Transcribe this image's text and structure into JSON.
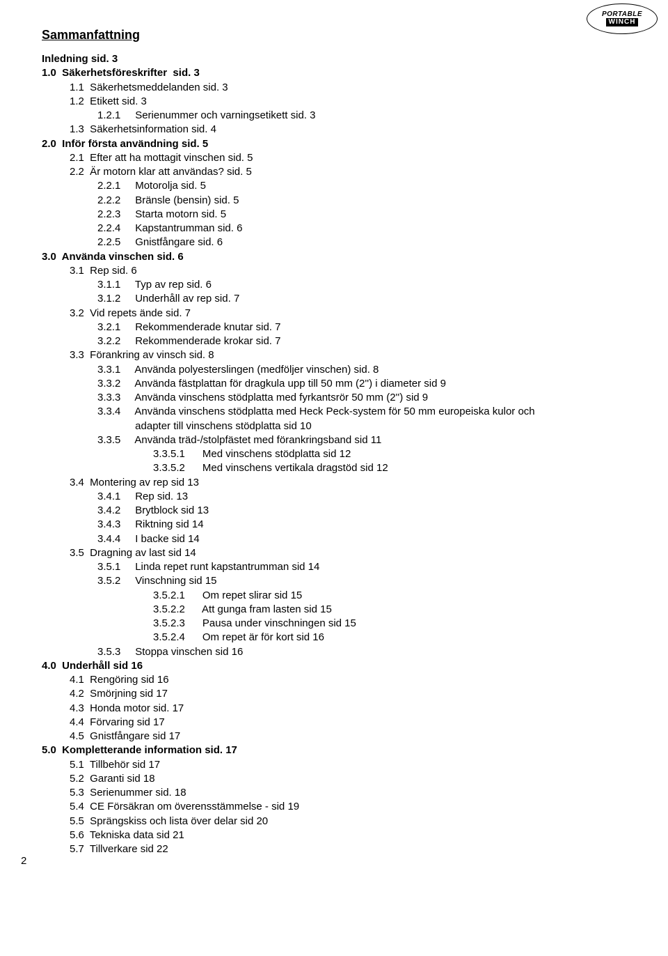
{
  "logo": {
    "line1": "PORTABLE",
    "line2": "WINCH"
  },
  "title": "Sammanfattning",
  "page_number": "2",
  "lines": [
    {
      "lvl": "l0",
      "bold": true,
      "text": "Inledning sid. 3"
    },
    {
      "lvl": "l0",
      "bold": true,
      "text": "1.0  Säkerhetsföreskrifter  sid. 3"
    },
    {
      "lvl": "l1",
      "bold": false,
      "text": "1.1  Säkerhetsmeddelanden sid. 3"
    },
    {
      "lvl": "l1",
      "bold": false,
      "text": "1.2  Etikett sid. 3"
    },
    {
      "lvl": "l2",
      "bold": false,
      "text": "1.2.1     Serienummer och varningsetikett sid. 3"
    },
    {
      "lvl": "l1",
      "bold": false,
      "text": "1.3  Säkerhetsinformation sid. 4"
    },
    {
      "lvl": "l0",
      "bold": true,
      "text": "2.0  Inför första användning sid. 5"
    },
    {
      "lvl": "l1",
      "bold": false,
      "text": "2.1  Efter att ha mottagit vinschen sid. 5"
    },
    {
      "lvl": "l1",
      "bold": false,
      "text": "2.2  Är motorn klar att användas? sid. 5"
    },
    {
      "lvl": "l2",
      "bold": false,
      "text": "2.2.1     Motorolja sid. 5"
    },
    {
      "lvl": "l2",
      "bold": false,
      "text": "2.2.2     Bränsle (bensin) sid. 5"
    },
    {
      "lvl": "l2",
      "bold": false,
      "text": "2.2.3     Starta motorn sid. 5"
    },
    {
      "lvl": "l2",
      "bold": false,
      "text": "2.2.4     Kapstantrumman sid. 6"
    },
    {
      "lvl": "l2",
      "bold": false,
      "text": "2.2.5     Gnistfångare sid. 6"
    },
    {
      "lvl": "l0",
      "bold": true,
      "text": "3.0  Använda vinschen sid. 6"
    },
    {
      "lvl": "l1",
      "bold": false,
      "text": "3.1  Rep sid. 6"
    },
    {
      "lvl": "l2",
      "bold": false,
      "text": "3.1.1     Typ av rep sid. 6"
    },
    {
      "lvl": "l2",
      "bold": false,
      "text": "3.1.2     Underhåll av rep sid. 7"
    },
    {
      "lvl": "l1",
      "bold": false,
      "text": "3.2  Vid repets ände sid. 7"
    },
    {
      "lvl": "l2",
      "bold": false,
      "text": "3.2.1     Rekommenderade knutar sid. 7"
    },
    {
      "lvl": "l2",
      "bold": false,
      "text": "3.2.2     Rekommenderade krokar sid. 7"
    },
    {
      "lvl": "l1",
      "bold": false,
      "text": "3.3  Förankring av vinsch sid. 8"
    },
    {
      "lvl": "l2",
      "bold": false,
      "text": "3.3.1     Använda polyesterslingen (medföljer vinschen) sid. 8"
    },
    {
      "lvl": "l2",
      "bold": false,
      "text": "3.3.2     Använda fästplattan för dragkula upp till 50 mm (2'') i diameter sid 9"
    },
    {
      "lvl": "l2",
      "bold": false,
      "text": "3.3.3     Använda vinschens stödplatta med fyrkantsrör 50 mm (2'') sid 9"
    },
    {
      "lvl": "l2",
      "bold": false,
      "text": "3.3.4     Använda vinschens stödplatta med Heck Peck-system för 50 mm europeiska kulor och"
    },
    {
      "lvl": "l2",
      "bold": false,
      "text": "             adapter till vinschens stödplatta sid 10"
    },
    {
      "lvl": "l2",
      "bold": false,
      "text": "3.3.5     Använda träd-/stolpfästet med förankringsband sid 11"
    },
    {
      "lvl": "l3",
      "bold": false,
      "text": "3.3.5.1      Med vinschens stödplatta sid 12"
    },
    {
      "lvl": "l3",
      "bold": false,
      "text": "3.3.5.2      Med vinschens vertikala dragstöd sid 12"
    },
    {
      "lvl": "l1",
      "bold": false,
      "text": "3.4  Montering av rep sid 13"
    },
    {
      "lvl": "l2",
      "bold": false,
      "text": "3.4.1     Rep sid. 13"
    },
    {
      "lvl": "l2",
      "bold": false,
      "text": "3.4.2     Brytblock sid 13"
    },
    {
      "lvl": "l2",
      "bold": false,
      "text": "3.4.3     Riktning sid 14"
    },
    {
      "lvl": "l2",
      "bold": false,
      "text": "3.4.4     I backe sid 14"
    },
    {
      "lvl": "l1",
      "bold": false,
      "text": "3.5  Dragning av last sid 14"
    },
    {
      "lvl": "l2",
      "bold": false,
      "text": "3.5.1     Linda repet runt kapstantrumman sid 14"
    },
    {
      "lvl": "l2",
      "bold": false,
      "text": "3.5.2     Vinschning sid 15"
    },
    {
      "lvl": "l3",
      "bold": false,
      "text": "3.5.2.1      Om repet slirar sid 15"
    },
    {
      "lvl": "l3",
      "bold": false,
      "text": "3.5.2.2      Att gunga fram lasten sid 15"
    },
    {
      "lvl": "l3",
      "bold": false,
      "text": "3.5.2.3      Pausa under vinschningen sid 15"
    },
    {
      "lvl": "l3",
      "bold": false,
      "text": "3.5.2.4      Om repet är för kort sid 16"
    },
    {
      "lvl": "l2",
      "bold": false,
      "text": "3.5.3     Stoppa vinschen sid 16"
    },
    {
      "lvl": "l0",
      "bold": true,
      "text": "4.0  Underhåll sid 16"
    },
    {
      "lvl": "l1",
      "bold": false,
      "text": "4.1  Rengöring sid 16"
    },
    {
      "lvl": "l1",
      "bold": false,
      "text": "4.2  Smörjning sid 17"
    },
    {
      "lvl": "l1",
      "bold": false,
      "text": "4.3  Honda motor sid. 17"
    },
    {
      "lvl": "l1",
      "bold": false,
      "text": "4.4  Förvaring sid 17"
    },
    {
      "lvl": "l1",
      "bold": false,
      "text": "4.5  Gnistfångare sid 17"
    },
    {
      "lvl": "l0",
      "bold": true,
      "text": "5.0  Kompletterande information sid. 17"
    },
    {
      "lvl": "l1",
      "bold": false,
      "text": "5.1  Tillbehör sid 17"
    },
    {
      "lvl": "l1",
      "bold": false,
      "text": "5.2  Garanti sid 18"
    },
    {
      "lvl": "l1",
      "bold": false,
      "text": "5.3  Serienummer sid. 18"
    },
    {
      "lvl": "l1",
      "bold": false,
      "text": "5.4  CE Försäkran om överensstämmelse - sid 19"
    },
    {
      "lvl": "l1",
      "bold": false,
      "text": "5.5  Sprängskiss och lista över delar sid 20"
    },
    {
      "lvl": "l1",
      "bold": false,
      "text": "5.6  Tekniska data sid 21"
    },
    {
      "lvl": "l1",
      "bold": false,
      "text": "5.7  Tillverkare sid 22"
    }
  ]
}
